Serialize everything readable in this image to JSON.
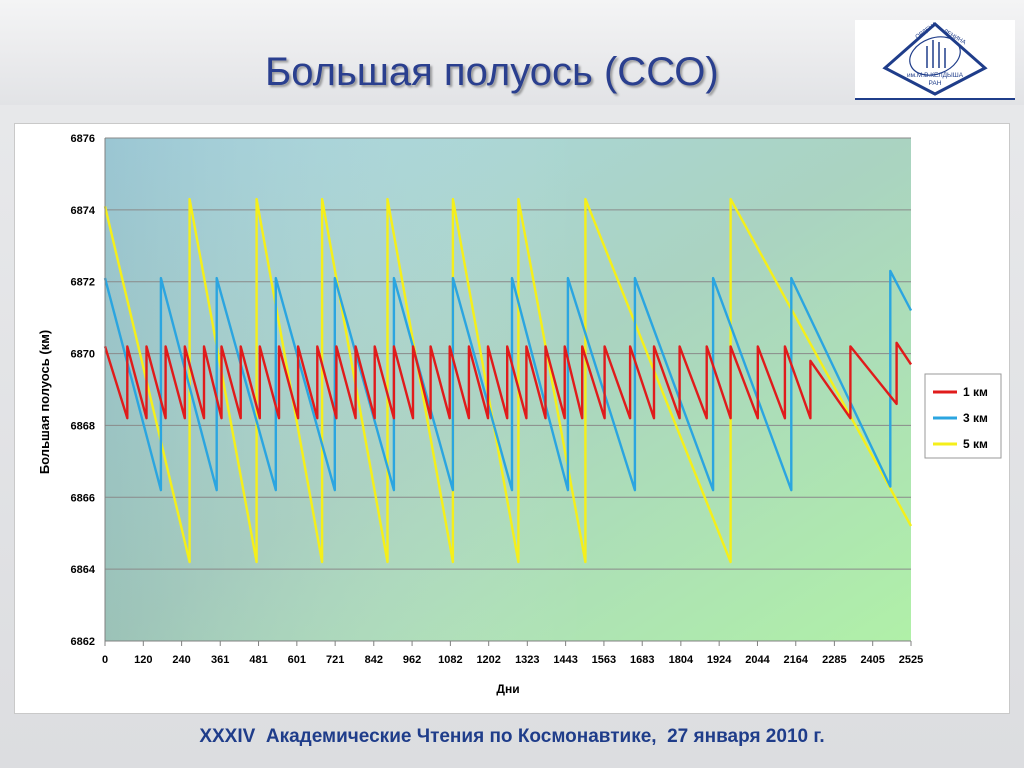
{
  "slide": {
    "title": "Большая полуось  (ССО)",
    "footer": "XXXIV  Академические Чтения по Космонавтике,  27 января 2010 г.",
    "logo_text": [
      "ОРДЕНА",
      "ЛЕНИНА",
      "им.М.В.КЕЛДЫША",
      "РАН"
    ]
  },
  "chart_data": {
    "type": "line",
    "ylabel": "Большая  полуось  (км)",
    "xlabel": "Дни",
    "ylim": [
      6862,
      6876
    ],
    "xlim": [
      0,
      2525
    ],
    "yticks": [
      "6862",
      "6864",
      "6866",
      "6868",
      "6870",
      "6872",
      "6874",
      "6876"
    ],
    "xticks": [
      "0",
      "120",
      "240",
      "361",
      "481",
      "601",
      "721",
      "842",
      "962",
      "1082",
      "1202",
      "1323",
      "1443",
      "1563",
      "1683",
      "1804",
      "1924",
      "2044",
      "2164",
      "2285",
      "2405",
      "2525"
    ],
    "grid": true,
    "legend_position": "right",
    "series": [
      {
        "name": "1 км",
        "color": "#e01b1b",
        "x": [
          0,
          70,
          70,
          130,
          130,
          190,
          190,
          250,
          250,
          310,
          310,
          365,
          365,
          425,
          425,
          485,
          485,
          545,
          545,
          605,
          605,
          665,
          665,
          725,
          725,
          785,
          785,
          845,
          845,
          905,
          905,
          965,
          965,
          1020,
          1020,
          1080,
          1080,
          1140,
          1140,
          1200,
          1200,
          1260,
          1260,
          1320,
          1320,
          1380,
          1380,
          1440,
          1440,
          1495,
          1495,
          1565,
          1565,
          1645,
          1645,
          1720,
          1720,
          1800,
          1800,
          1885,
          1885,
          1960,
          1960,
          2045,
          2045,
          2130,
          2130,
          2210,
          2210,
          2335,
          2335,
          2480,
          2480,
          2525
        ],
        "y": [
          6870.2,
          6868.2,
          6870.2,
          6868.2,
          6870.2,
          6868.2,
          6870.2,
          6868.2,
          6870.2,
          6868.2,
          6870.2,
          6868.2,
          6870.2,
          6868.2,
          6870.2,
          6868.2,
          6870.2,
          6868.2,
          6870.2,
          6868.2,
          6870.2,
          6868.2,
          6870.2,
          6868.2,
          6870.2,
          6868.2,
          6870.2,
          6868.2,
          6870.2,
          6868.2,
          6870.2,
          6868.2,
          6870.2,
          6868.2,
          6870.2,
          6868.2,
          6870.2,
          6868.2,
          6870.2,
          6868.2,
          6870.2,
          6868.2,
          6870.2,
          6868.2,
          6870.2,
          6868.2,
          6870.2,
          6868.2,
          6870.2,
          6868.2,
          6870.2,
          6868.2,
          6870.2,
          6868.2,
          6870.2,
          6868.2,
          6870.2,
          6868.2,
          6870.2,
          6868.2,
          6870.2,
          6868.2,
          6870.2,
          6868.2,
          6870.2,
          6868.2,
          6870.2,
          6868.2,
          6869.8,
          6868.2,
          6870.2,
          6868.6,
          6870.3,
          6869.7
        ]
      },
      {
        "name": "3 км",
        "color": "#2ba5e0",
        "x": [
          0,
          175,
          175,
          350,
          350,
          535,
          535,
          720,
          720,
          905,
          905,
          1090,
          1090,
          1275,
          1275,
          1450,
          1450,
          1660,
          1660,
          1905,
          1905,
          2150,
          2150,
          2460,
          2460,
          2525
        ],
        "y": [
          6872.1,
          6866.2,
          6872.1,
          6866.2,
          6872.1,
          6866.2,
          6872.1,
          6866.2,
          6872.1,
          6866.2,
          6872.1,
          6866.2,
          6872.1,
          6866.2,
          6872.1,
          6866.2,
          6872.1,
          6866.2,
          6872.1,
          6866.2,
          6872.1,
          6866.2,
          6872.1,
          6866.3,
          6872.3,
          6871.2
        ]
      },
      {
        "name": "5 км",
        "color": "#f5ef1a",
        "x": [
          0,
          265,
          265,
          475,
          475,
          680,
          680,
          885,
          885,
          1090,
          1090,
          1295,
          1295,
          1505,
          1505,
          1960,
          1960,
          2525
        ],
        "y": [
          6874.1,
          6864.2,
          6874.3,
          6864.2,
          6874.3,
          6864.2,
          6874.3,
          6864.2,
          6874.3,
          6864.2,
          6874.3,
          6864.2,
          6874.3,
          6864.2,
          6874.3,
          6864.2,
          6874.3,
          6865.2
        ]
      }
    ]
  }
}
